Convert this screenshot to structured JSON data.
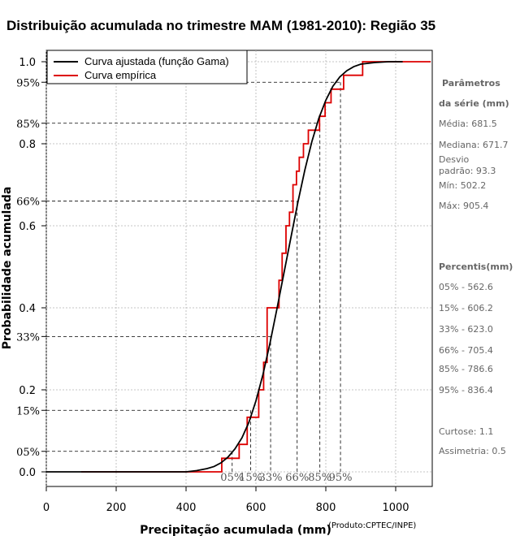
{
  "chart_data": {
    "type": "line",
    "title": "Distribuição acumulada no trimestre MAM (1981-2010): Região 35",
    "xlabel": "Precipitação acumulada (mm)",
    "ylabel": "Probabilidade acumulada",
    "xlim": [
      0,
      1100
    ],
    "ylim": [
      0,
      1.0
    ],
    "x_ticks": [
      0,
      200,
      400,
      600,
      800,
      1000
    ],
    "y_ticks": [
      0.0,
      0.2,
      0.4,
      0.6,
      0.8,
      1.0
    ],
    "y_tick_labels": [
      "0.0",
      "0.2",
      "0.4",
      "0.6",
      "0.8",
      "1.0"
    ],
    "percentile_y_labels": [
      {
        "p": 0.05,
        "label": "05%"
      },
      {
        "p": 0.15,
        "label": "15%"
      },
      {
        "p": 0.33,
        "label": "33%"
      },
      {
        "p": 0.66,
        "label": "66%"
      },
      {
        "p": 0.85,
        "label": "85%"
      },
      {
        "p": 0.95,
        "label": "95%"
      }
    ],
    "percentile_lines": [
      {
        "p": 0.05,
        "x": 532
      },
      {
        "p": 0.15,
        "x": 585
      },
      {
        "p": 0.33,
        "x": 642
      },
      {
        "p": 0.66,
        "x": 718
      },
      {
        "p": 0.85,
        "x": 783
      },
      {
        "p": 0.95,
        "x": 842
      }
    ],
    "percentile_x_labels": [
      "05%",
      "15%",
      "33%",
      "66%",
      "85%",
      "95%"
    ],
    "legend": [
      {
        "name": "Curva ajustada (função Gama)",
        "color": "#000000"
      },
      {
        "name": "Curva empírica",
        "color": "#dd0000"
      }
    ],
    "series": [
      {
        "name": "Curva ajustada (função Gama)",
        "color": "#000000",
        "x": [
          0,
          400,
          430,
          460,
          480,
          500,
          520,
          540,
          560,
          580,
          600,
          620,
          640,
          660,
          680,
          700,
          720,
          740,
          760,
          780,
          800,
          820,
          840,
          860,
          880,
          900,
          940,
          980,
          1020
        ],
        "y": [
          0.0,
          0.0,
          0.003,
          0.008,
          0.013,
          0.022,
          0.036,
          0.056,
          0.083,
          0.121,
          0.173,
          0.237,
          0.313,
          0.397,
          0.484,
          0.571,
          0.657,
          0.736,
          0.805,
          0.862,
          0.906,
          0.94,
          0.963,
          0.978,
          0.988,
          0.994,
          0.998,
          1.0,
          1.0
        ]
      },
      {
        "name": "Curva empírica",
        "color": "#dd0000",
        "type": "step",
        "x": [
          100,
          502.2,
          552,
          575,
          597,
          608,
          622,
          632,
          648,
          666,
          675,
          686,
          696,
          706,
          716,
          724,
          736,
          750,
          768,
          782,
          798,
          815,
          851,
          878,
          905.4,
          1100
        ],
        "y": [
          0.0,
          0.033,
          0.067,
          0.133,
          0.133,
          0.2,
          0.267,
          0.4,
          0.4,
          0.467,
          0.533,
          0.6,
          0.633,
          0.7,
          0.733,
          0.767,
          0.8,
          0.833,
          0.833,
          0.867,
          0.9,
          0.933,
          0.967,
          0.967,
          1.0,
          1.0
        ]
      }
    ]
  },
  "stats": {
    "params_title_1": "Parâmetros",
    "params_title_2": "da série (mm)",
    "media": "Média: 681.5",
    "mediana": "Mediana: 671.7",
    "desvio_1": "Desvio",
    "desvio_2": "padrão: 93.3",
    "min": "Mín: 502.2",
    "max": "Máx: 905.4",
    "percentis_title": "Percentis(mm)",
    "p05": "05% - 562.6",
    "p15": "15% - 606.2",
    "p33": "33% - 623.0",
    "p66": "66% - 705.4",
    "p85": "85% - 786.6",
    "p95": "95% - 836.4",
    "curtose": "Curtose: 1.1",
    "assimetria": "Assimetria: 0.5"
  },
  "credit": "(Produto:CPTEC/INPE)"
}
